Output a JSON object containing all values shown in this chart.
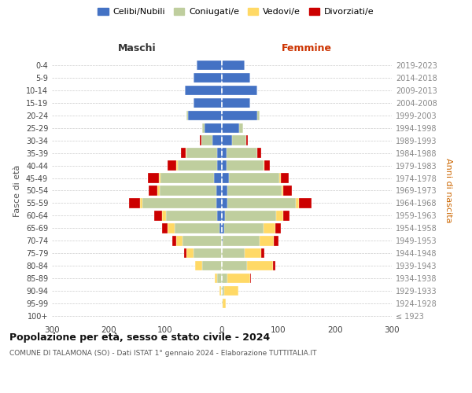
{
  "age_groups": [
    "100+",
    "95-99",
    "90-94",
    "85-89",
    "80-84",
    "75-79",
    "70-74",
    "65-69",
    "60-64",
    "55-59",
    "50-54",
    "45-49",
    "40-44",
    "35-39",
    "30-34",
    "25-29",
    "20-24",
    "15-19",
    "10-14",
    "5-9",
    "0-4"
  ],
  "birth_years": [
    "≤ 1923",
    "1924-1928",
    "1929-1933",
    "1934-1938",
    "1939-1943",
    "1944-1948",
    "1949-1953",
    "1954-1958",
    "1959-1963",
    "1964-1968",
    "1969-1973",
    "1974-1978",
    "1979-1983",
    "1984-1988",
    "1989-1993",
    "1994-1998",
    "1999-2003",
    "2004-2008",
    "2009-2013",
    "2014-2018",
    "2019-2023"
  ],
  "male": {
    "celibi": [
      0,
      0,
      0,
      0,
      0,
      0,
      0,
      4,
      8,
      10,
      10,
      14,
      8,
      8,
      16,
      30,
      60,
      50,
      65,
      50,
      45
    ],
    "coniugati": [
      0,
      0,
      2,
      8,
      35,
      50,
      70,
      80,
      90,
      130,
      100,
      95,
      70,
      55,
      20,
      5,
      2,
      0,
      0,
      0,
      0
    ],
    "vedovi": [
      0,
      0,
      2,
      5,
      12,
      12,
      10,
      12,
      8,
      4,
      4,
      2,
      2,
      1,
      0,
      0,
      0,
      0,
      0,
      0,
      0
    ],
    "divorziati": [
      0,
      0,
      0,
      0,
      0,
      4,
      8,
      10,
      14,
      20,
      15,
      20,
      16,
      8,
      3,
      0,
      0,
      0,
      0,
      0,
      0
    ]
  },
  "female": {
    "nubili": [
      0,
      0,
      0,
      0,
      0,
      0,
      2,
      4,
      6,
      10,
      10,
      12,
      8,
      8,
      18,
      30,
      62,
      50,
      62,
      50,
      40
    ],
    "coniugate": [
      0,
      2,
      4,
      10,
      45,
      40,
      65,
      70,
      90,
      120,
      95,
      90,
      65,
      55,
      25,
      8,
      4,
      0,
      0,
      0,
      0
    ],
    "vedove": [
      0,
      5,
      25,
      40,
      45,
      30,
      25,
      20,
      12,
      6,
      4,
      2,
      2,
      0,
      0,
      0,
      0,
      0,
      0,
      0,
      0
    ],
    "divorziate": [
      0,
      0,
      0,
      2,
      4,
      5,
      8,
      10,
      12,
      22,
      14,
      14,
      10,
      6,
      3,
      0,
      0,
      0,
      0,
      0,
      0
    ]
  },
  "colors": {
    "celibi": "#4472C4",
    "coniugati": "#BFCE9E",
    "vedovi": "#FFD966",
    "divorziati": "#CC0000"
  },
  "title": "Popolazione per età, sesso e stato civile - 2024",
  "subtitle": "COMUNE DI TALAMONA (SO) - Dati ISTAT 1° gennaio 2024 - Elaborazione TUTTITALIA.IT",
  "ylabel_left": "Fasce di età",
  "ylabel_right": "Anni di nascita",
  "xlabel_left": "Maschi",
  "xlabel_right": "Femmine",
  "xlim": 300,
  "bg_color": "#ffffff",
  "grid_color": "#cccccc",
  "legend_labels": [
    "Celibi/Nubili",
    "Coniugati/e",
    "Vedovi/e",
    "Divorziati/e"
  ]
}
